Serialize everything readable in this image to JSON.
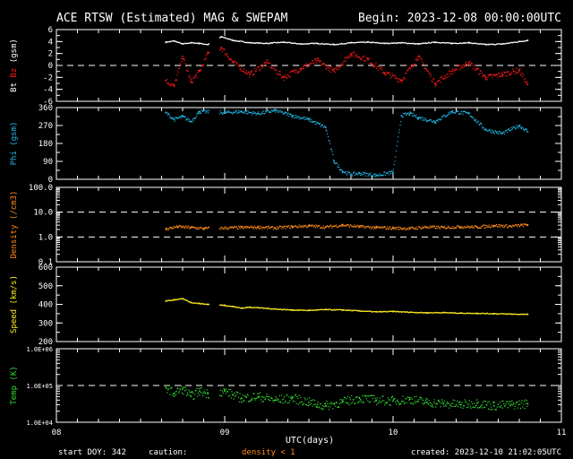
{
  "header": {
    "title": "ACE RTSW (Estimated) MAG & SWEPAM",
    "begin": "Begin: 2023-12-08 00:00:00UTC"
  },
  "footer": {
    "start_doy": "start DOY: 342",
    "caution": "caution:",
    "density_note": "density < 1",
    "created": "created: 2023-12-10 21:02:05UTC"
  },
  "colors": {
    "background": "#000000",
    "axes": "#ffffff",
    "bt": "#ffffff",
    "bz": "#ff1a1a",
    "phi": "#22b8e8",
    "density": "#ff8c1a",
    "speed": "#ffee22",
    "temp": "#33dd33"
  },
  "chart_data": {
    "type": "multi-panel time series",
    "xlabel": "UTC(days)",
    "x_unit": "days since 2023-12-08 00:00 UTC",
    "xlim": [
      0,
      3
    ],
    "x_ticks": [
      0,
      1,
      2,
      3
    ],
    "x_tick_labels": [
      "08",
      "09",
      "10",
      "11"
    ],
    "panels": [
      {
        "id": "mag",
        "ylabel_parts": [
          "Bt",
          "Bz",
          "(gsm)"
        ],
        "ylim": [
          -6,
          6
        ],
        "y_ticks": [
          6,
          4,
          2,
          0,
          -2,
          -4,
          -6
        ],
        "y_tick_labels": [
          "6",
          "4",
          "2",
          "0",
          "-2",
          "-4",
          "-6"
        ],
        "log": false,
        "reference_lines": [
          0
        ],
        "series": [
          {
            "name": "Bt",
            "color_key": "bt",
            "x": [
              0.65,
              0.7,
              0.75,
              0.8,
              0.85,
              0.9,
              0.98,
              1.05,
              1.15,
              1.25,
              1.35,
              1.45,
              1.55,
              1.65,
              1.75,
              1.85,
              1.95,
              2.05,
              2.15,
              2.25,
              2.35,
              2.45,
              2.55,
              2.65,
              2.75,
              2.8
            ],
            "y": [
              3.9,
              4.1,
              3.6,
              3.8,
              3.7,
              3.5,
              4.8,
              4.2,
              3.8,
              3.7,
              3.9,
              3.6,
              3.7,
              3.5,
              3.8,
              3.9,
              3.7,
              3.8,
              3.6,
              3.9,
              3.7,
              3.8,
              3.5,
              3.6,
              4.0,
              4.2
            ]
          },
          {
            "name": "Bz",
            "color_key": "bz",
            "x": [
              0.65,
              0.7,
              0.75,
              0.8,
              0.85,
              0.9,
              0.98,
              1.05,
              1.15,
              1.25,
              1.35,
              1.45,
              1.55,
              1.65,
              1.75,
              1.85,
              1.95,
              2.05,
              2.15,
              2.25,
              2.35,
              2.45,
              2.55,
              2.65,
              2.75,
              2.8
            ],
            "y": [
              -2.5,
              -3.5,
              1.5,
              -2.8,
              -1.0,
              2.0,
              3.0,
              0.5,
              -1.5,
              0.5,
              -2.0,
              -0.5,
              0.8,
              -1.0,
              2.0,
              1.0,
              -1.2,
              -2.5,
              1.5,
              -3.0,
              -1.0,
              0.5,
              -2.0,
              -1.5,
              -0.8,
              -3.2
            ]
          }
        ]
      },
      {
        "id": "phi",
        "ylabel": "Phi (gsm)",
        "ylim": [
          0,
          360
        ],
        "y_ticks": [
          360,
          270,
          180,
          90,
          0
        ],
        "y_tick_labels": [
          "360",
          "270",
          "180",
          "90",
          "0"
        ],
        "log": false,
        "reference_lines": [],
        "series": [
          {
            "name": "Phi",
            "color_key": "phi",
            "style": "scatter",
            "x": [
              0.65,
              0.7,
              0.75,
              0.8,
              0.85,
              1.0,
              1.1,
              1.2,
              1.3,
              1.4,
              1.5,
              1.6,
              1.65,
              1.7,
              1.75,
              1.8,
              1.9,
              2.0,
              2.05,
              2.1,
              2.15,
              2.25,
              2.35,
              2.45,
              2.55,
              2.65,
              2.75,
              2.8
            ],
            "y": [
              335,
              300,
              315,
              290,
              340,
              335,
              340,
              330,
              345,
              320,
              300,
              260,
              90,
              40,
              25,
              30,
              20,
              35,
              320,
              330,
              310,
              290,
              340,
              330,
              250,
              230,
              270,
              240
            ]
          }
        ]
      },
      {
        "id": "density",
        "ylabel": "Density (/cm3)",
        "ylim": [
          0.1,
          100
        ],
        "y_ticks": [
          100,
          10,
          1,
          0.1
        ],
        "y_tick_labels": [
          "100.0",
          "10.0",
          "1.0",
          "0.1"
        ],
        "log": true,
        "reference_lines": [
          10,
          1
        ],
        "series": [
          {
            "name": "Density",
            "color_key": "density",
            "x": [
              0.65,
              0.72,
              0.8,
              0.88,
              1.1,
              1.2,
              1.3,
              1.4,
              1.5,
              1.6,
              1.7,
              1.8,
              1.9,
              2.0,
              2.1,
              2.2,
              2.3,
              2.4,
              2.5,
              2.6,
              2.7,
              2.8
            ],
            "y": [
              2.1,
              2.6,
              2.4,
              2.2,
              2.4,
              2.5,
              2.3,
              2.6,
              2.8,
              2.5,
              3.0,
              2.6,
              2.4,
              2.3,
              2.2,
              2.5,
              2.4,
              2.6,
              2.5,
              2.9,
              2.7,
              3.1
            ]
          }
        ]
      },
      {
        "id": "speed",
        "ylabel": "Speed (km/s)",
        "ylim": [
          200,
          600
        ],
        "y_ticks": [
          600,
          500,
          400,
          300,
          200
        ],
        "y_tick_labels": [
          "600",
          "500",
          "400",
          "300",
          "200"
        ],
        "log": false,
        "reference_lines": [],
        "series": [
          {
            "name": "Speed",
            "color_key": "speed",
            "x": [
              0.65,
              0.7,
              0.75,
              0.8,
              0.85,
              0.9,
              1.0,
              1.05,
              1.1,
              1.15,
              1.2,
              1.3,
              1.4,
              1.5,
              1.6,
              1.7,
              1.8,
              1.9,
              2.0,
              2.1,
              2.2,
              2.3,
              2.4,
              2.5,
              2.6,
              2.7,
              2.8
            ],
            "y": [
              418,
              425,
              430,
              410,
              405,
              400,
              395,
              388,
              380,
              385,
              382,
              375,
              370,
              368,
              372,
              370,
              365,
              360,
              362,
              358,
              355,
              356,
              353,
              352,
              350,
              348,
              346
            ]
          }
        ]
      },
      {
        "id": "temp",
        "ylabel": "Temp (K)",
        "ylim": [
          10000,
          1000000
        ],
        "y_ticks": [
          1000000,
          100000,
          10000
        ],
        "y_tick_labels": [
          "1.0E+06",
          "1.0E+05",
          "1.0E+04"
        ],
        "log": true,
        "reference_lines": [
          100000
        ],
        "series": [
          {
            "name": "Temp",
            "color_key": "temp",
            "x": [
              0.65,
              0.7,
              0.75,
              0.8,
              0.85,
              0.9,
              1.0,
              1.05,
              1.1,
              1.2,
              1.3,
              1.4,
              1.5,
              1.55,
              1.6,
              1.7,
              1.8,
              1.9,
              2.0,
              2.1,
              2.2,
              2.3,
              2.4,
              2.5,
              2.6,
              2.7,
              2.8
            ],
            "y": [
              90000,
              60000,
              80000,
              50000,
              70000,
              60000,
              70000,
              55000,
              45000,
              50000,
              40000,
              45000,
              35000,
              30000,
              28000,
              35000,
              45000,
              40000,
              38000,
              42000,
              35000,
              32000,
              30000,
              33000,
              28000,
              30000,
              32000
            ]
          }
        ]
      }
    ]
  }
}
